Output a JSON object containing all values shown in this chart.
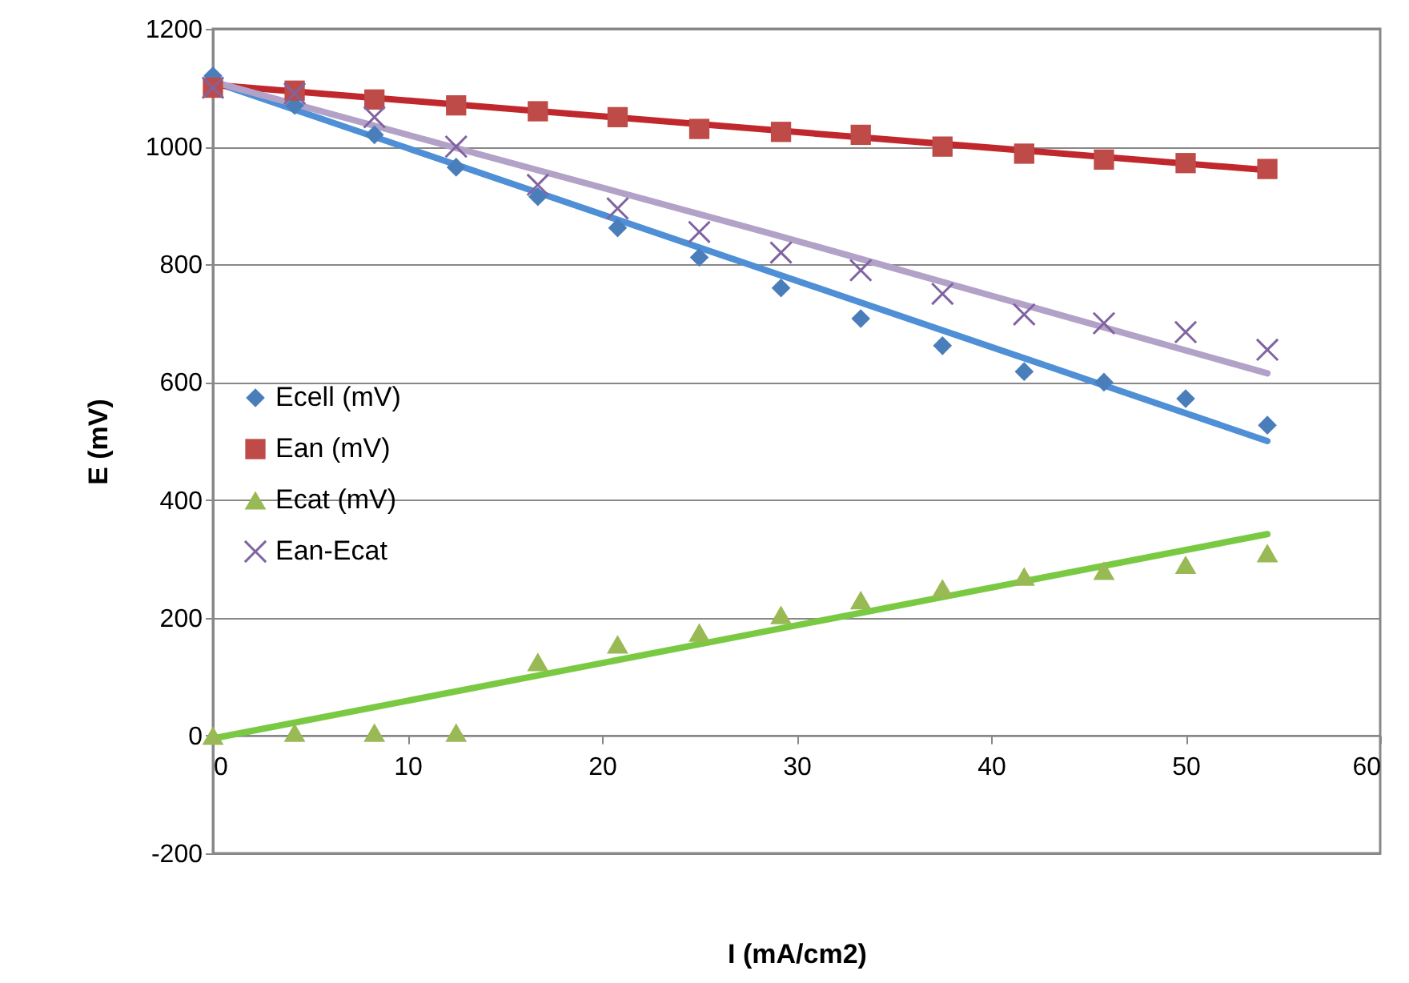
{
  "chart_data": {
    "type": "scatter",
    "xlabel": "I (mA/cm2)",
    "ylabel": "E (mV)",
    "xlim": [
      0,
      60
    ],
    "ylim": [
      -200,
      1200
    ],
    "xticks": [
      0,
      10,
      20,
      30,
      40,
      50,
      60
    ],
    "yticks": [
      -200,
      0,
      200,
      400,
      600,
      800,
      1000,
      1200
    ],
    "grid": "y",
    "legend": "left",
    "series": [
      {
        "type": "line",
        "color": "#4f8fd6",
        "marker": "none",
        "x": [
          0,
          54.2
        ],
        "values": [
          1110,
          500
        ]
      },
      {
        "type": "line",
        "color": "#c0282d",
        "marker": "none",
        "x": [
          0,
          54.2
        ],
        "values": [
          1105,
          960
        ]
      },
      {
        "type": "line",
        "color": "#7ac943",
        "marker": "none",
        "x": [
          0,
          54.2
        ],
        "values": [
          -5,
          342
        ]
      },
      {
        "type": "line",
        "color": "#b3a2c7",
        "marker": "none",
        "x": [
          0,
          28.6,
          54.2
        ],
        "values": [
          1110,
          853,
          615
        ]
      },
      {
        "name": "Ecell (mV)",
        "color": "#4a7ebb",
        "marker": "diamond",
        "x": [
          0,
          4.2,
          8.3,
          12.5,
          16.7,
          20.8,
          25,
          29.2,
          33.3,
          37.5,
          41.7,
          45.8,
          50,
          54.2
        ],
        "values": [
          1120,
          1070,
          1020,
          965,
          915,
          862,
          812,
          760,
          708,
          662,
          618,
          600,
          572,
          527
        ]
      },
      {
        "name": "Ean (mV)",
        "color": "#be4b48",
        "marker": "square",
        "x": [
          0,
          4.2,
          8.3,
          12.5,
          16.7,
          20.8,
          25,
          29.2,
          33.3,
          37.5,
          41.7,
          45.8,
          50,
          54.2
        ],
        "values": [
          1100,
          1095,
          1080,
          1070,
          1060,
          1050,
          1030,
          1025,
          1020,
          1000,
          988,
          978,
          972,
          962
        ]
      },
      {
        "name": "Ecat (mV)",
        "color": "#98b954",
        "marker": "triangle",
        "x": [
          0,
          4.2,
          8.3,
          12.5,
          16.7,
          20.8,
          25,
          29.2,
          33.3,
          37.5,
          41.7,
          45.8,
          50,
          54.2
        ],
        "values": [
          0,
          5,
          5,
          5,
          125,
          155,
          175,
          205,
          230,
          250,
          270,
          280,
          290,
          310
        ]
      },
      {
        "name": "Ean-Ecat",
        "color": "#8064a2",
        "marker": "cross",
        "x": [
          0,
          4.2,
          8.3,
          12.5,
          16.7,
          20.8,
          25,
          29.2,
          33.3,
          37.5,
          41.7,
          45.8,
          50,
          54.2
        ],
        "values": [
          1100,
          1090,
          1050,
          1000,
          935,
          895,
          855,
          820,
          790,
          750,
          715,
          700,
          685,
          655
        ]
      }
    ]
  }
}
